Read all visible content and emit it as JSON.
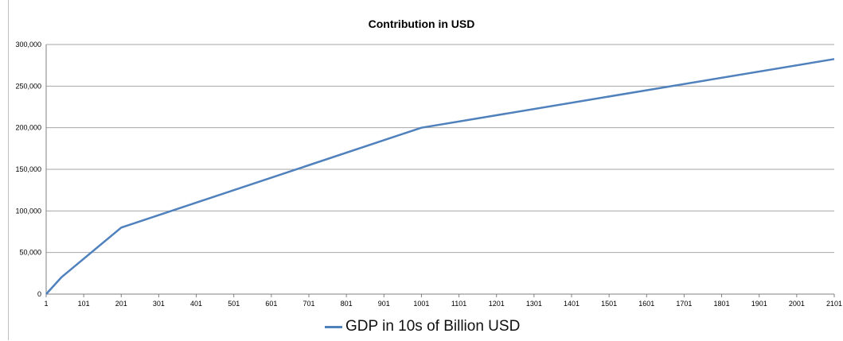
{
  "chart_data": {
    "type": "line",
    "title": "Contribution in  USD",
    "xlabel": "",
    "ylabel": "",
    "x_ticks": [
      "1",
      "101",
      "201",
      "301",
      "401",
      "501",
      "601",
      "701",
      "801",
      "901",
      "1001",
      "1101",
      "1201",
      "1301",
      "1401",
      "1501",
      "1601",
      "1701",
      "1801",
      "1901",
      "2001",
      "2101"
    ],
    "y_ticks": [
      "0",
      "50,000",
      "100,000",
      "150,000",
      "200,000",
      "250,000",
      "300,000"
    ],
    "ylim": [
      0,
      300000
    ],
    "xlim": [
      1,
      2101
    ],
    "grid": "horizontal",
    "legend_position": "bottom",
    "series": [
      {
        "name": "GDP in 10s of Billion USD",
        "color": "#4F81BD",
        "x": [
          1,
          41,
          201,
          1001,
          2101
        ],
        "y": [
          0,
          20000,
          80000,
          200000,
          282500
        ]
      }
    ]
  }
}
